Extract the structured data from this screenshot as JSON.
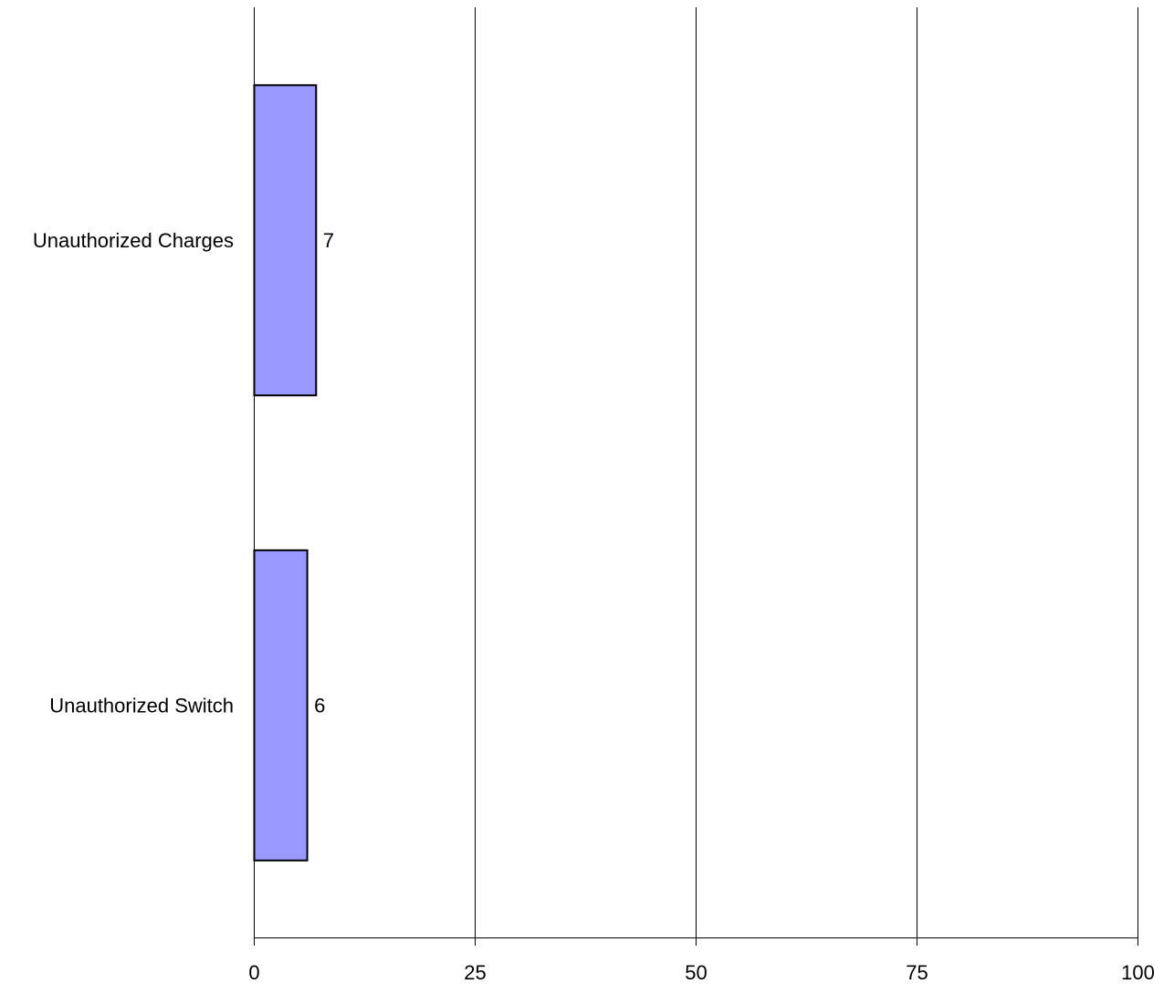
{
  "chart_data": {
    "type": "bar",
    "orientation": "horizontal",
    "categories": [
      "Unauthorized Charges",
      "Unauthorized Switch"
    ],
    "values": [
      7,
      6
    ],
    "data_labels": [
      "7",
      "6"
    ],
    "xlim": [
      0,
      100
    ],
    "xticks": [
      0,
      25,
      50,
      75,
      100
    ],
    "xtick_labels": [
      "0",
      "25",
      "50",
      "75",
      "100"
    ],
    "grid": "vertical",
    "legend": "none",
    "bar_color": "#9999ff",
    "bar_edge_color": "#000000",
    "gridline_color": "#000000"
  }
}
